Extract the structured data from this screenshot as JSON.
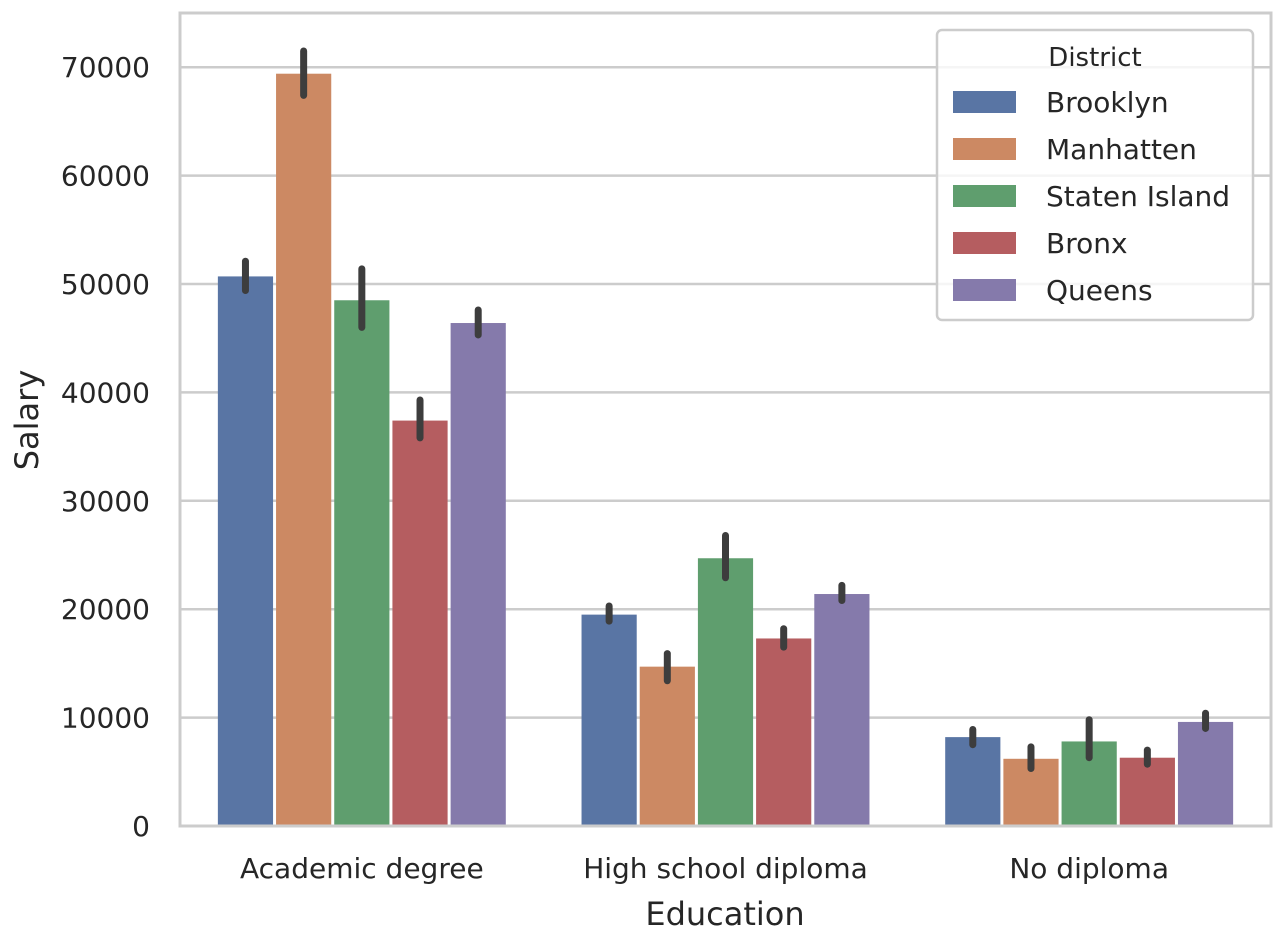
{
  "chart_data": {
    "type": "bar",
    "xlabel": "Education",
    "ylabel": "Salary",
    "categories": [
      "Academic degree",
      "High school diploma",
      "No diploma"
    ],
    "ylim": [
      0,
      75000
    ],
    "yticks": [
      0,
      10000,
      20000,
      30000,
      40000,
      50000,
      60000,
      70000
    ],
    "ytick_labels": [
      "0",
      "10000",
      "20000",
      "30000",
      "40000",
      "50000",
      "60000",
      "70000"
    ],
    "grid": "horizontal",
    "legend": {
      "title": "District",
      "placement": "top-right"
    },
    "series": [
      {
        "name": "Brooklyn",
        "color": "#5975a4",
        "values": [
          50700,
          19500,
          8200
        ],
        "err_low": [
          49400,
          18900,
          7500
        ],
        "err_high": [
          52100,
          20300,
          8900
        ]
      },
      {
        "name": "Manhatten",
        "color": "#cc8963",
        "values": [
          69400,
          14700,
          6200
        ],
        "err_low": [
          67400,
          13400,
          5300
        ],
        "err_high": [
          71500,
          15900,
          7300
        ]
      },
      {
        "name": "Staten Island",
        "color": "#5f9e6e",
        "values": [
          48500,
          24700,
          7800
        ],
        "err_low": [
          46000,
          22900,
          6300
        ],
        "err_high": [
          51400,
          26800,
          9800
        ]
      },
      {
        "name": "Bronx",
        "color": "#b55d60",
        "values": [
          37400,
          17300,
          6300
        ],
        "err_low": [
          35800,
          16500,
          5700
        ],
        "err_high": [
          39300,
          18200,
          7000
        ]
      },
      {
        "name": "Queens",
        "color": "#857aab",
        "values": [
          46400,
          21400,
          9600
        ],
        "err_low": [
          45300,
          20800,
          9000
        ],
        "err_high": [
          47600,
          22200,
          10400
        ]
      }
    ]
  }
}
